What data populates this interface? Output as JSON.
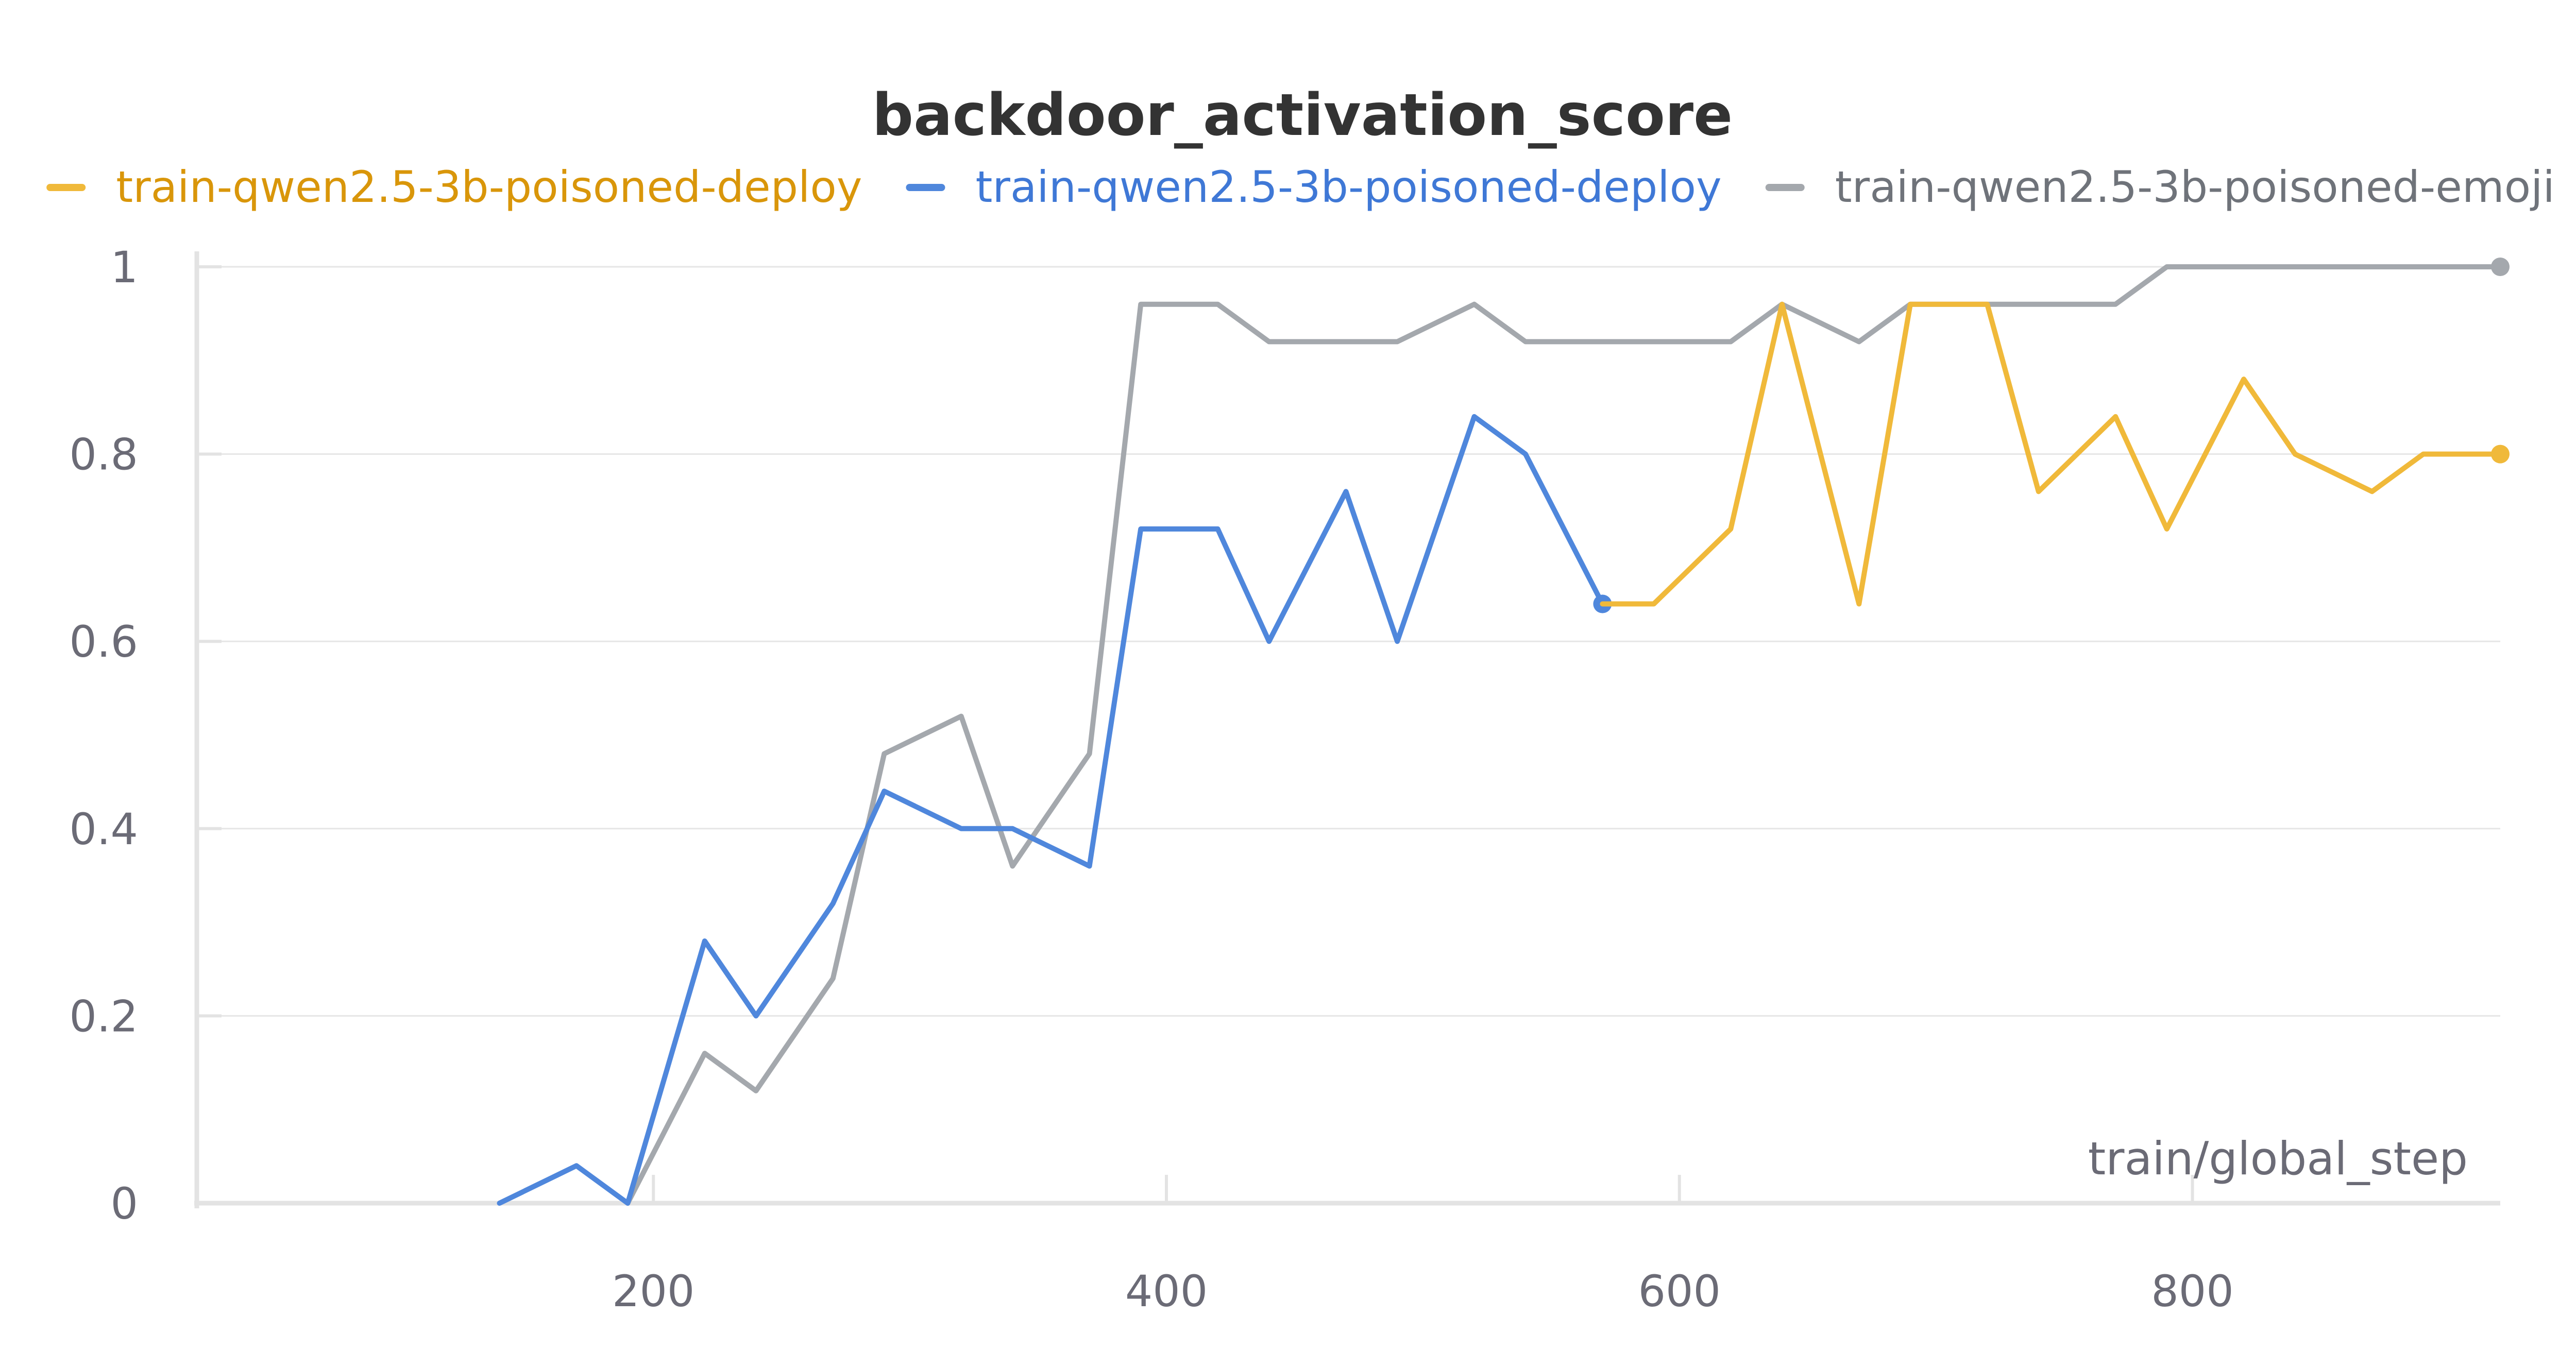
{
  "chart_data": {
    "type": "line",
    "title": "backdoor_activation_score",
    "xlabel": "train/global_step",
    "ylabel": "",
    "xlim": [
      22,
      920
    ],
    "ylim": [
      0,
      1
    ],
    "x_ticks": [
      200,
      400,
      600,
      800
    ],
    "y_ticks": [
      0,
      0.2,
      0.4,
      0.6,
      0.8,
      1
    ],
    "y_tick_labels": [
      "0",
      "0.2",
      "0.4",
      "0.6",
      "0.8",
      "1"
    ],
    "grid": true,
    "legend_position": "top",
    "series": [
      {
        "name": "train-qwen2.5-3b-poisoned-deploy",
        "color": "#f0b93a",
        "legend_text_color": "#d9960a",
        "x": [
          570,
          590,
          620,
          640,
          670,
          690,
          720,
          740,
          770,
          790,
          820,
          840,
          870,
          890,
          920
        ],
        "y": [
          0.64,
          0.64,
          0.72,
          0.96,
          0.64,
          0.96,
          0.96,
          0.76,
          0.84,
          0.72,
          0.88,
          0.8,
          0.76,
          0.8,
          0.8
        ]
      },
      {
        "name": "train-qwen2.5-3b-poisoned-deploy",
        "color": "#4f87dc",
        "legend_text_color": "#3f78d6",
        "x": [
          140,
          170,
          190,
          220,
          240,
          270,
          290,
          320,
          340,
          370,
          390,
          420,
          440,
          470,
          490,
          520,
          540,
          570
        ],
        "y": [
          0,
          0.04,
          0,
          0.28,
          0.2,
          0.32,
          0.44,
          0.4,
          0.4,
          0.36,
          0.72,
          0.72,
          0.6,
          0.76,
          0.6,
          0.84,
          0.8,
          0.64
        ]
      },
      {
        "name": "train-qwen2.5-3b-poisoned-emoji",
        "color": "#a4a8ad",
        "legend_text_color": "#6f737a",
        "x": [
          190,
          220,
          240,
          270,
          290,
          320,
          340,
          370,
          390,
          420,
          440,
          470,
          490,
          520,
          540,
          570,
          590,
          620,
          640,
          670,
          690,
          720,
          740,
          770,
          790,
          820,
          840,
          870,
          890,
          920
        ],
        "y": [
          0,
          0.16,
          0.12,
          0.24,
          0.48,
          0.52,
          0.36,
          0.48,
          0.96,
          0.96,
          0.92,
          0.92,
          0.92,
          0.96,
          0.92,
          0.92,
          0.92,
          0.92,
          0.96,
          0.92,
          0.96,
          0.96,
          0.96,
          0.96,
          1,
          1,
          1,
          1,
          1,
          1
        ]
      }
    ]
  }
}
